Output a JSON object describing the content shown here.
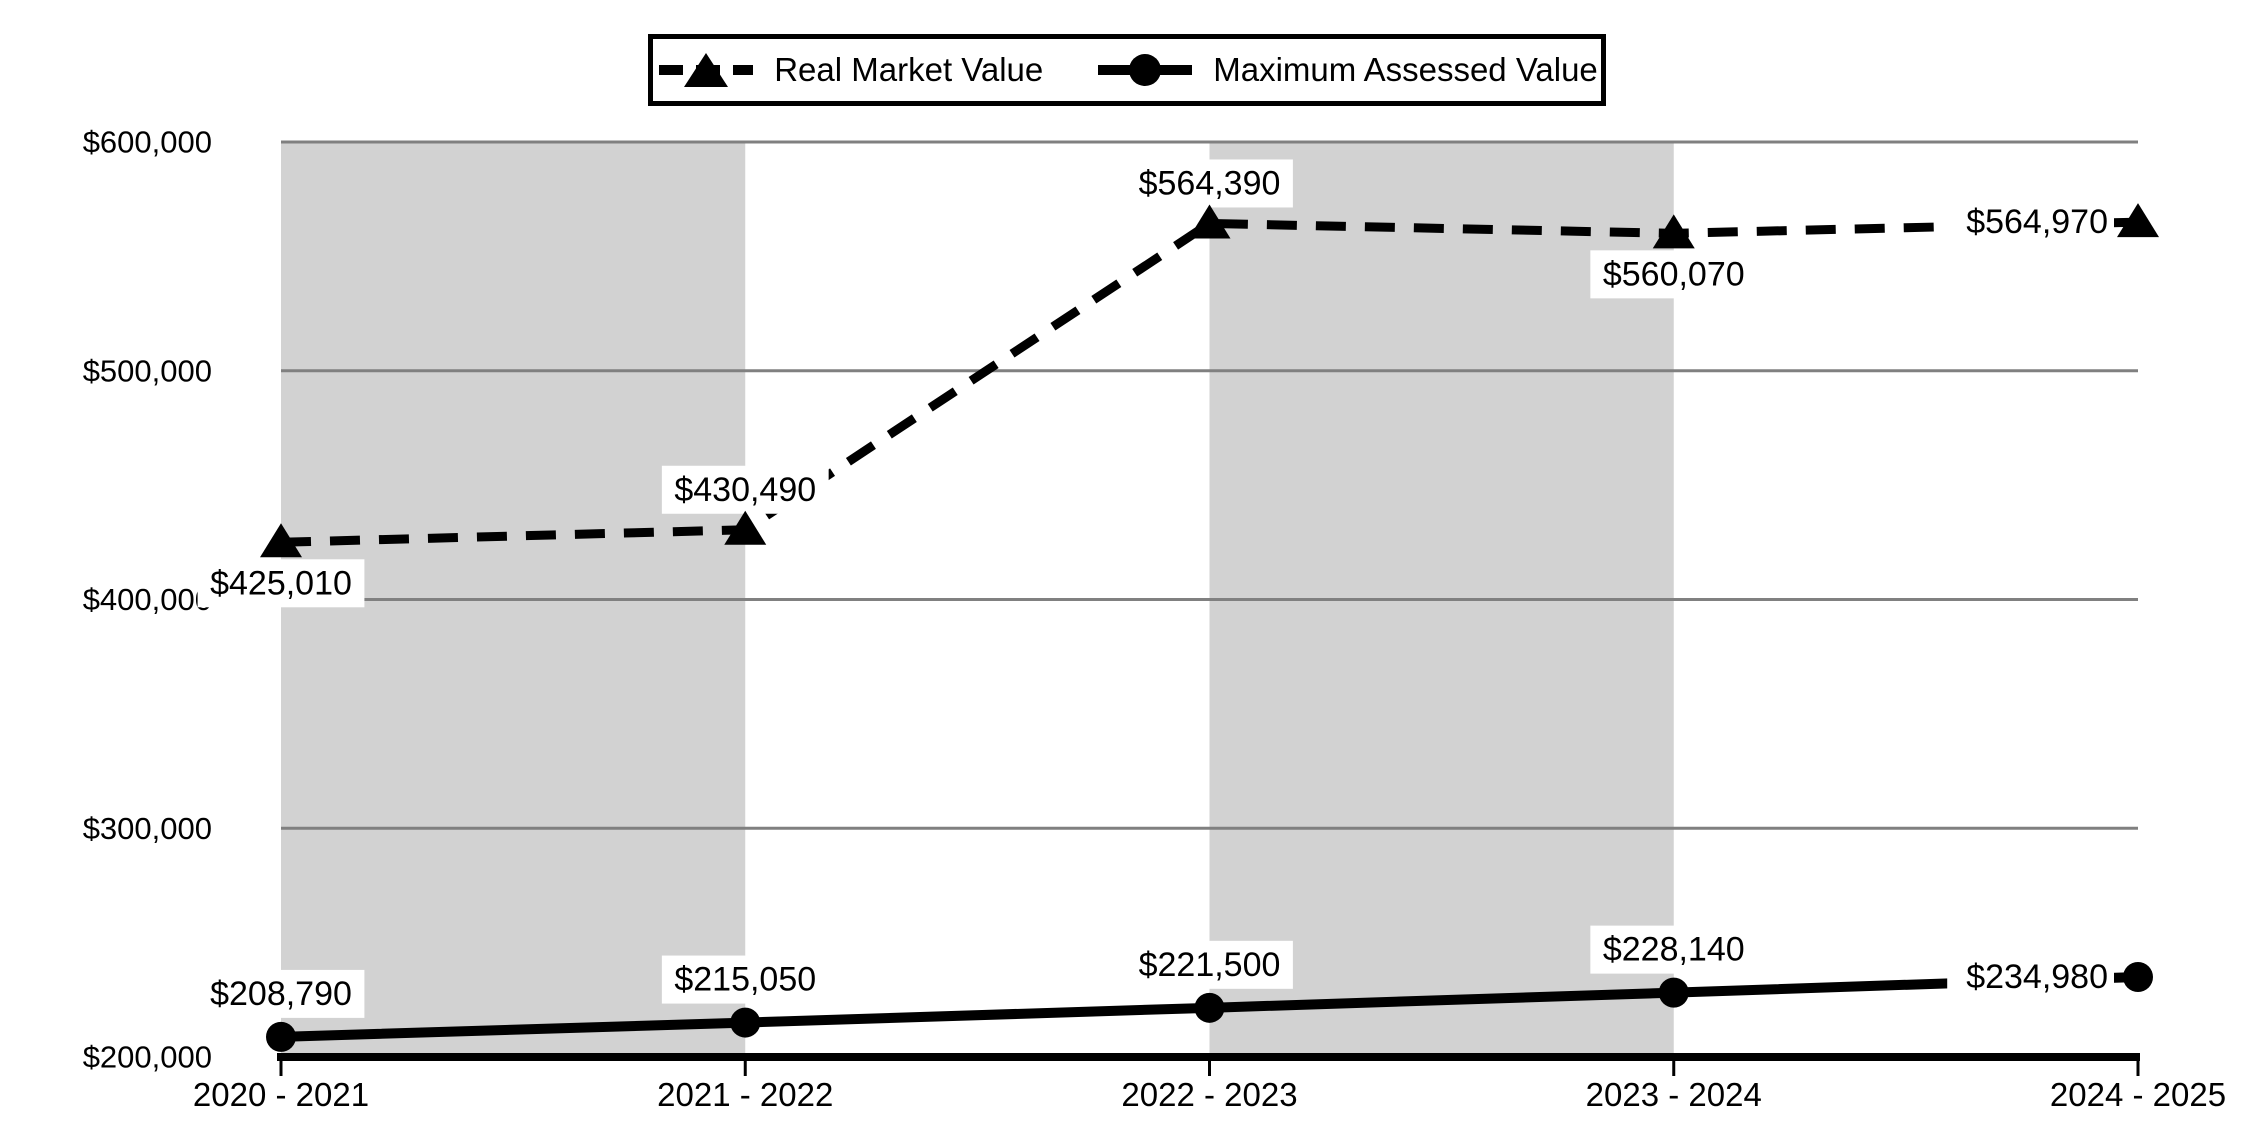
{
  "legend": {
    "items": [
      {
        "label": "Real Market Value"
      },
      {
        "label": "Maximum Assessed Value"
      }
    ]
  },
  "chart_data": {
    "type": "line",
    "title": "",
    "xlabel": "",
    "ylabel": "",
    "categories": [
      "2020 - 2021",
      "2021 - 2022",
      "2022 - 2023",
      "2023 - 2024",
      "2024 - 2025"
    ],
    "series": [
      {
        "name": "Real Market Value",
        "style": "dashed",
        "marker": "triangle",
        "color": "#000000",
        "values": [
          425010,
          430490,
          564390,
          560070,
          564970
        ],
        "labels": [
          "$425,010",
          "$430,490",
          "$564,390",
          "$560,070",
          "$564,970"
        ],
        "label_placement": [
          "below",
          "above",
          "above",
          "below",
          "inline-left"
        ]
      },
      {
        "name": "Maximum Assessed Value",
        "style": "solid",
        "marker": "circle",
        "color": "#000000",
        "values": [
          208790,
          215050,
          221500,
          228140,
          234980
        ],
        "labels": [
          "$208,790",
          "$215,050",
          "$221,500",
          "$228,140",
          "$234,980"
        ],
        "label_placement": [
          "above",
          "above",
          "above",
          "above",
          "inline-left"
        ]
      }
    ],
    "y_ticks": [
      {
        "value": 600000,
        "label": "$600,000"
      },
      {
        "value": 500000,
        "label": "$500,000"
      },
      {
        "value": 400000,
        "label": "$400,000"
      },
      {
        "value": 300000,
        "label": "$300,000"
      },
      {
        "value": 200000,
        "label": "$200,000"
      }
    ],
    "ylim": [
      200000,
      600000
    ],
    "grid": "horizontal",
    "legend_position": "top",
    "shaded_bands": [
      {
        "from_category": 0,
        "to_category": 1
      },
      {
        "from_category": 2,
        "to_category": 3
      }
    ],
    "colors": {
      "series": "#000000",
      "band": "#d2d2d2",
      "gridline": "#808080",
      "axis": "#000000",
      "label_bg": "#ffffff",
      "text": "#000000"
    }
  }
}
